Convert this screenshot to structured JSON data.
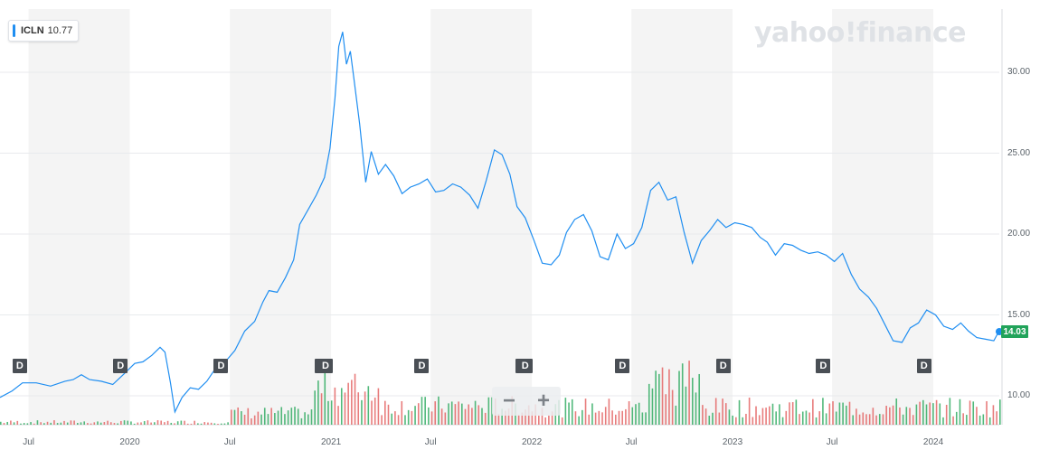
{
  "ticker": {
    "symbol": "ICLN",
    "value": "10.77"
  },
  "watermark": "yahoo!finance",
  "zoom": {
    "minus": "−",
    "plus": "+"
  },
  "last_price": "14.03",
  "dividend_marker": "D",
  "colors": {
    "line": "#1f8ef1",
    "vol_up": "#27a85a",
    "vol_down": "#e25b5b",
    "band": "#f4f4f4",
    "badge": "#21a35a"
  },
  "chart_data": {
    "type": "line",
    "title": "",
    "xlabel": "",
    "ylabel": "",
    "ylim": [
      8.2,
      33.5
    ],
    "y_ticks": [
      "30.00",
      "25.00",
      "20.00",
      "15.00",
      "10.00"
    ],
    "x_ticks": [
      "Jul",
      "2020",
      "Jul",
      "2021",
      "Jul",
      "2022",
      "Jul",
      "2023",
      "Jul",
      "2024"
    ],
    "x_ticks_dates": [
      "2019-07-01",
      "2020-01-01",
      "2020-07-01",
      "2021-01-01",
      "2021-07-01",
      "2022-01-01",
      "2022-07-01",
      "2023-01-01",
      "2023-07-01",
      "2024-01-01"
    ],
    "x_range": [
      "2019-05-10",
      "2024-04-30"
    ],
    "series": [
      {
        "values": [
          [
            "2019-05-10",
            9.9
          ],
          [
            "2019-06-01",
            10.3
          ],
          [
            "2019-06-20",
            10.8
          ],
          [
            "2019-07-15",
            10.8
          ],
          [
            "2019-08-10",
            10.6
          ],
          [
            "2019-09-05",
            10.9
          ],
          [
            "2019-09-20",
            11.0
          ],
          [
            "2019-10-05",
            11.3
          ],
          [
            "2019-10-20",
            11.0
          ],
          [
            "2019-11-10",
            10.9
          ],
          [
            "2019-12-01",
            10.7
          ],
          [
            "2019-12-20",
            11.3
          ],
          [
            "2020-01-10",
            12.0
          ],
          [
            "2020-01-25",
            12.1
          ],
          [
            "2020-02-10",
            12.5
          ],
          [
            "2020-02-25",
            13.0
          ],
          [
            "2020-03-05",
            12.7
          ],
          [
            "2020-03-15",
            10.8
          ],
          [
            "2020-03-23",
            9.0
          ],
          [
            "2020-04-05",
            9.9
          ],
          [
            "2020-04-20",
            10.5
          ],
          [
            "2020-05-05",
            10.4
          ],
          [
            "2020-05-20",
            10.9
          ],
          [
            "2020-06-05",
            11.7
          ],
          [
            "2020-06-25",
            12.2
          ],
          [
            "2020-07-10",
            12.8
          ],
          [
            "2020-07-28",
            14.0
          ],
          [
            "2020-08-15",
            14.6
          ],
          [
            "2020-08-30",
            15.8
          ],
          [
            "2020-09-10",
            16.5
          ],
          [
            "2020-09-25",
            16.4
          ],
          [
            "2020-10-10",
            17.3
          ],
          [
            "2020-10-25",
            18.4
          ],
          [
            "2020-11-05",
            20.6
          ],
          [
            "2020-11-20",
            21.5
          ],
          [
            "2020-12-05",
            22.4
          ],
          [
            "2020-12-20",
            23.5
          ],
          [
            "2020-12-30",
            25.3
          ],
          [
            "2021-01-08",
            28.4
          ],
          [
            "2021-01-15",
            31.6
          ],
          [
            "2021-01-22",
            32.5
          ],
          [
            "2021-01-29",
            30.5
          ],
          [
            "2021-02-05",
            31.3
          ],
          [
            "2021-02-12",
            29.5
          ],
          [
            "2021-02-22",
            26.8
          ],
          [
            "2021-03-05",
            23.2
          ],
          [
            "2021-03-15",
            25.1
          ],
          [
            "2021-03-28",
            23.7
          ],
          [
            "2021-04-10",
            24.3
          ],
          [
            "2021-04-25",
            23.6
          ],
          [
            "2021-05-10",
            22.5
          ],
          [
            "2021-05-25",
            22.9
          ],
          [
            "2021-06-10",
            23.1
          ],
          [
            "2021-06-25",
            23.4
          ],
          [
            "2021-07-10",
            22.6
          ],
          [
            "2021-07-25",
            22.7
          ],
          [
            "2021-08-10",
            23.1
          ],
          [
            "2021-08-25",
            22.9
          ],
          [
            "2021-09-10",
            22.4
          ],
          [
            "2021-09-25",
            21.6
          ],
          [
            "2021-10-10",
            23.3
          ],
          [
            "2021-10-25",
            25.2
          ],
          [
            "2021-11-08",
            24.9
          ],
          [
            "2021-11-22",
            23.7
          ],
          [
            "2021-12-05",
            21.7
          ],
          [
            "2021-12-20",
            21.0
          ],
          [
            "2022-01-05",
            19.6
          ],
          [
            "2022-01-20",
            18.2
          ],
          [
            "2022-02-05",
            18.1
          ],
          [
            "2022-02-20",
            18.7
          ],
          [
            "2022-03-05",
            20.1
          ],
          [
            "2022-03-20",
            20.9
          ],
          [
            "2022-04-05",
            21.2
          ],
          [
            "2022-04-20",
            20.2
          ],
          [
            "2022-05-05",
            18.6
          ],
          [
            "2022-05-20",
            18.4
          ],
          [
            "2022-06-05",
            20.0
          ],
          [
            "2022-06-20",
            19.1
          ],
          [
            "2022-07-05",
            19.4
          ],
          [
            "2022-07-20",
            20.4
          ],
          [
            "2022-08-05",
            22.7
          ],
          [
            "2022-08-20",
            23.2
          ],
          [
            "2022-09-05",
            22.1
          ],
          [
            "2022-09-20",
            22.3
          ],
          [
            "2022-10-05",
            20.1
          ],
          [
            "2022-10-20",
            18.2
          ],
          [
            "2022-11-05",
            19.6
          ],
          [
            "2022-11-20",
            20.2
          ],
          [
            "2022-12-05",
            20.9
          ],
          [
            "2022-12-20",
            20.4
          ],
          [
            "2023-01-05",
            20.7
          ],
          [
            "2023-01-20",
            20.6
          ],
          [
            "2023-02-05",
            20.4
          ],
          [
            "2023-02-20",
            19.8
          ],
          [
            "2023-03-05",
            19.5
          ],
          [
            "2023-03-20",
            18.7
          ],
          [
            "2023-04-05",
            19.4
          ],
          [
            "2023-04-20",
            19.3
          ],
          [
            "2023-05-05",
            19.0
          ],
          [
            "2023-05-20",
            18.8
          ],
          [
            "2023-06-05",
            18.9
          ],
          [
            "2023-06-20",
            18.7
          ],
          [
            "2023-07-05",
            18.3
          ],
          [
            "2023-07-20",
            18.8
          ],
          [
            "2023-08-05",
            17.5
          ],
          [
            "2023-08-20",
            16.6
          ],
          [
            "2023-09-05",
            16.1
          ],
          [
            "2023-09-20",
            15.4
          ],
          [
            "2023-10-05",
            14.4
          ],
          [
            "2023-10-20",
            13.4
          ],
          [
            "2023-11-05",
            13.3
          ],
          [
            "2023-11-20",
            14.2
          ],
          [
            "2023-12-05",
            14.5
          ],
          [
            "2023-12-20",
            15.3
          ],
          [
            "2024-01-05",
            15.0
          ],
          [
            "2024-01-20",
            14.3
          ],
          [
            "2024-02-05",
            14.1
          ],
          [
            "2024-02-20",
            14.5
          ],
          [
            "2024-03-05",
            14.0
          ],
          [
            "2024-03-20",
            13.6
          ],
          [
            "2024-04-05",
            13.5
          ],
          [
            "2024-04-20",
            13.4
          ],
          [
            "2024-04-30",
            14.03
          ]
        ]
      }
    ],
    "dividend_dates": [
      "2019-06-15",
      "2019-12-15",
      "2020-06-15",
      "2020-12-15",
      "2020-12-22",
      "2021-06-15",
      "2021-12-15",
      "2021-12-20",
      "2022-06-15",
      "2022-12-15",
      "2023-06-15",
      "2023-12-15"
    ],
    "volume_note": "volume bars shown along bottom, green = up day, red = down day"
  }
}
